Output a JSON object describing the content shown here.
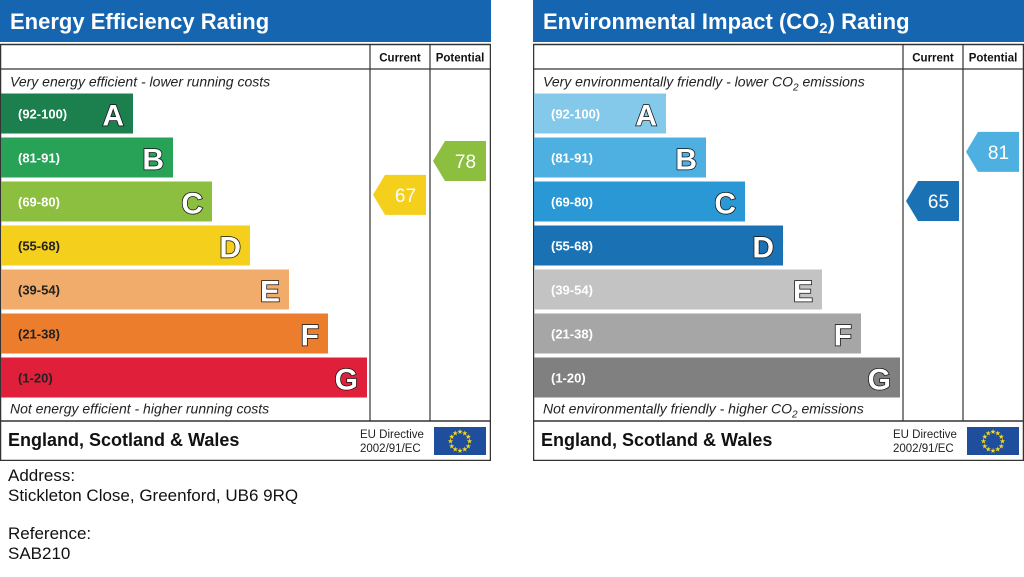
{
  "chart_data": [
    {
      "type": "bar",
      "title": "Energy Efficiency Rating",
      "title_parts": [
        "Energy Efficiency Rating"
      ],
      "col_current": "Current",
      "col_potential": "Potential",
      "top_note": [
        "Very energy efficient - lower running costs"
      ],
      "bottom_note": [
        "Not energy efficient - higher running costs"
      ],
      "region": "England, Scotland & Wales",
      "directive": [
        "EU Directive",
        "2002/91/EC"
      ],
      "bands": [
        {
          "range": "(92-100)",
          "letter": "A",
          "color": "#1b7f4e"
        },
        {
          "range": "(81-91)",
          "letter": "B",
          "color": "#27a257"
        },
        {
          "range": "(69-80)",
          "letter": "C",
          "color": "#8cbf3f"
        },
        {
          "range": "(55-68)",
          "letter": "D",
          "color": "#f4cf1b"
        },
        {
          "range": "(39-54)",
          "letter": "E",
          "color": "#f1ac6b"
        },
        {
          "range": "(21-38)",
          "letter": "F",
          "color": "#ec7d2d"
        },
        {
          "range": "(1-20)",
          "letter": "G",
          "color": "#e0203b"
        }
      ],
      "current": {
        "value": 67,
        "color": "#f4cf1b",
        "text_color": "#ffffff"
      },
      "potential": {
        "value": 78,
        "color": "#8cbf3f",
        "text_color": "#ffffff"
      }
    },
    {
      "type": "bar",
      "title": "Environmental Impact (CO2) Rating",
      "title_parts": [
        "Environmental Impact (CO",
        "2",
        ") Rating"
      ],
      "col_current": "Current",
      "col_potential": "Potential",
      "top_note": [
        "Very environmentally friendly - lower CO",
        "2",
        " emissions"
      ],
      "bottom_note": [
        "Not environmentally friendly - higher CO",
        "2",
        " emissions"
      ],
      "region": "England, Scotland & Wales",
      "directive": [
        "EU Directive",
        "2002/91/EC"
      ],
      "bands": [
        {
          "range": "(92-100)",
          "letter": "A",
          "color": "#84c8ea"
        },
        {
          "range": "(81-91)",
          "letter": "B",
          "color": "#4eb0e1"
        },
        {
          "range": "(69-80)",
          "letter": "C",
          "color": "#2a98d4"
        },
        {
          "range": "(55-68)",
          "letter": "D",
          "color": "#1a72b5"
        },
        {
          "range": "(39-54)",
          "letter": "E",
          "color": "#c3c3c3"
        },
        {
          "range": "(21-38)",
          "letter": "F",
          "color": "#a6a6a6"
        },
        {
          "range": "(1-20)",
          "letter": "G",
          "color": "#808080"
        }
      ],
      "current": {
        "value": 65,
        "color": "#1a72b5",
        "text_color": "#ffffff"
      },
      "potential": {
        "value": 81,
        "color": "#4eb0e1",
        "text_color": "#ffffff"
      }
    }
  ],
  "address": {
    "label": "Address:",
    "value": "Stickleton Close, Greenford, UB6 9RQ"
  },
  "reference": {
    "label": "Reference:",
    "value": "SAB210"
  },
  "colors": {
    "header_bar": "#1565b0",
    "border": "#333333",
    "eu_flag": "#1f4e9c",
    "eu_stars": "#f7d81c"
  }
}
